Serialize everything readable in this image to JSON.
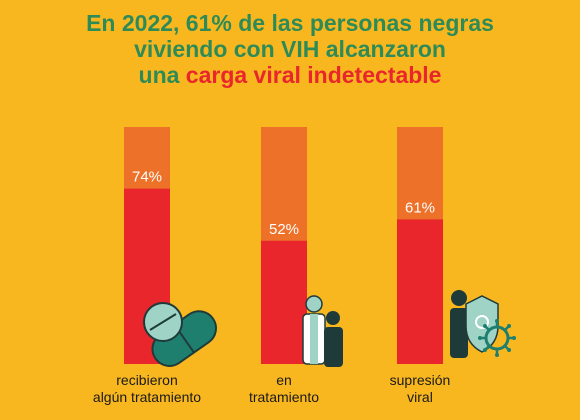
{
  "title": {
    "line1": "En 2022, 61% de las personas negras",
    "line2": "viviendo con VIH alcanzaron",
    "line3_prefix": "una ",
    "line3_highlight": "carga viral indetectable"
  },
  "colors": {
    "background": "#F9B71F",
    "title": "#2E8B57",
    "highlight": "#E8262B",
    "bar_total": "#EE7129",
    "bar_value": "#E8262B",
    "icon_teal": "#1E7F6E",
    "icon_light_teal": "#9ED3C6",
    "icon_dark": "#1E3B3A"
  },
  "chart_data": {
    "type": "bar",
    "categories": [
      [
        "recibieron",
        "algún tratamiento"
      ],
      [
        "en",
        "tratamiento"
      ],
      [
        "supresión",
        "viral"
      ]
    ],
    "values": [
      74,
      52,
      61
    ],
    "value_labels": [
      "74%",
      "52%",
      "61%"
    ],
    "ylim": [
      0,
      100
    ],
    "icons": [
      "pills-icon",
      "doctor-patient-icon",
      "shield-virus-icon"
    ]
  }
}
